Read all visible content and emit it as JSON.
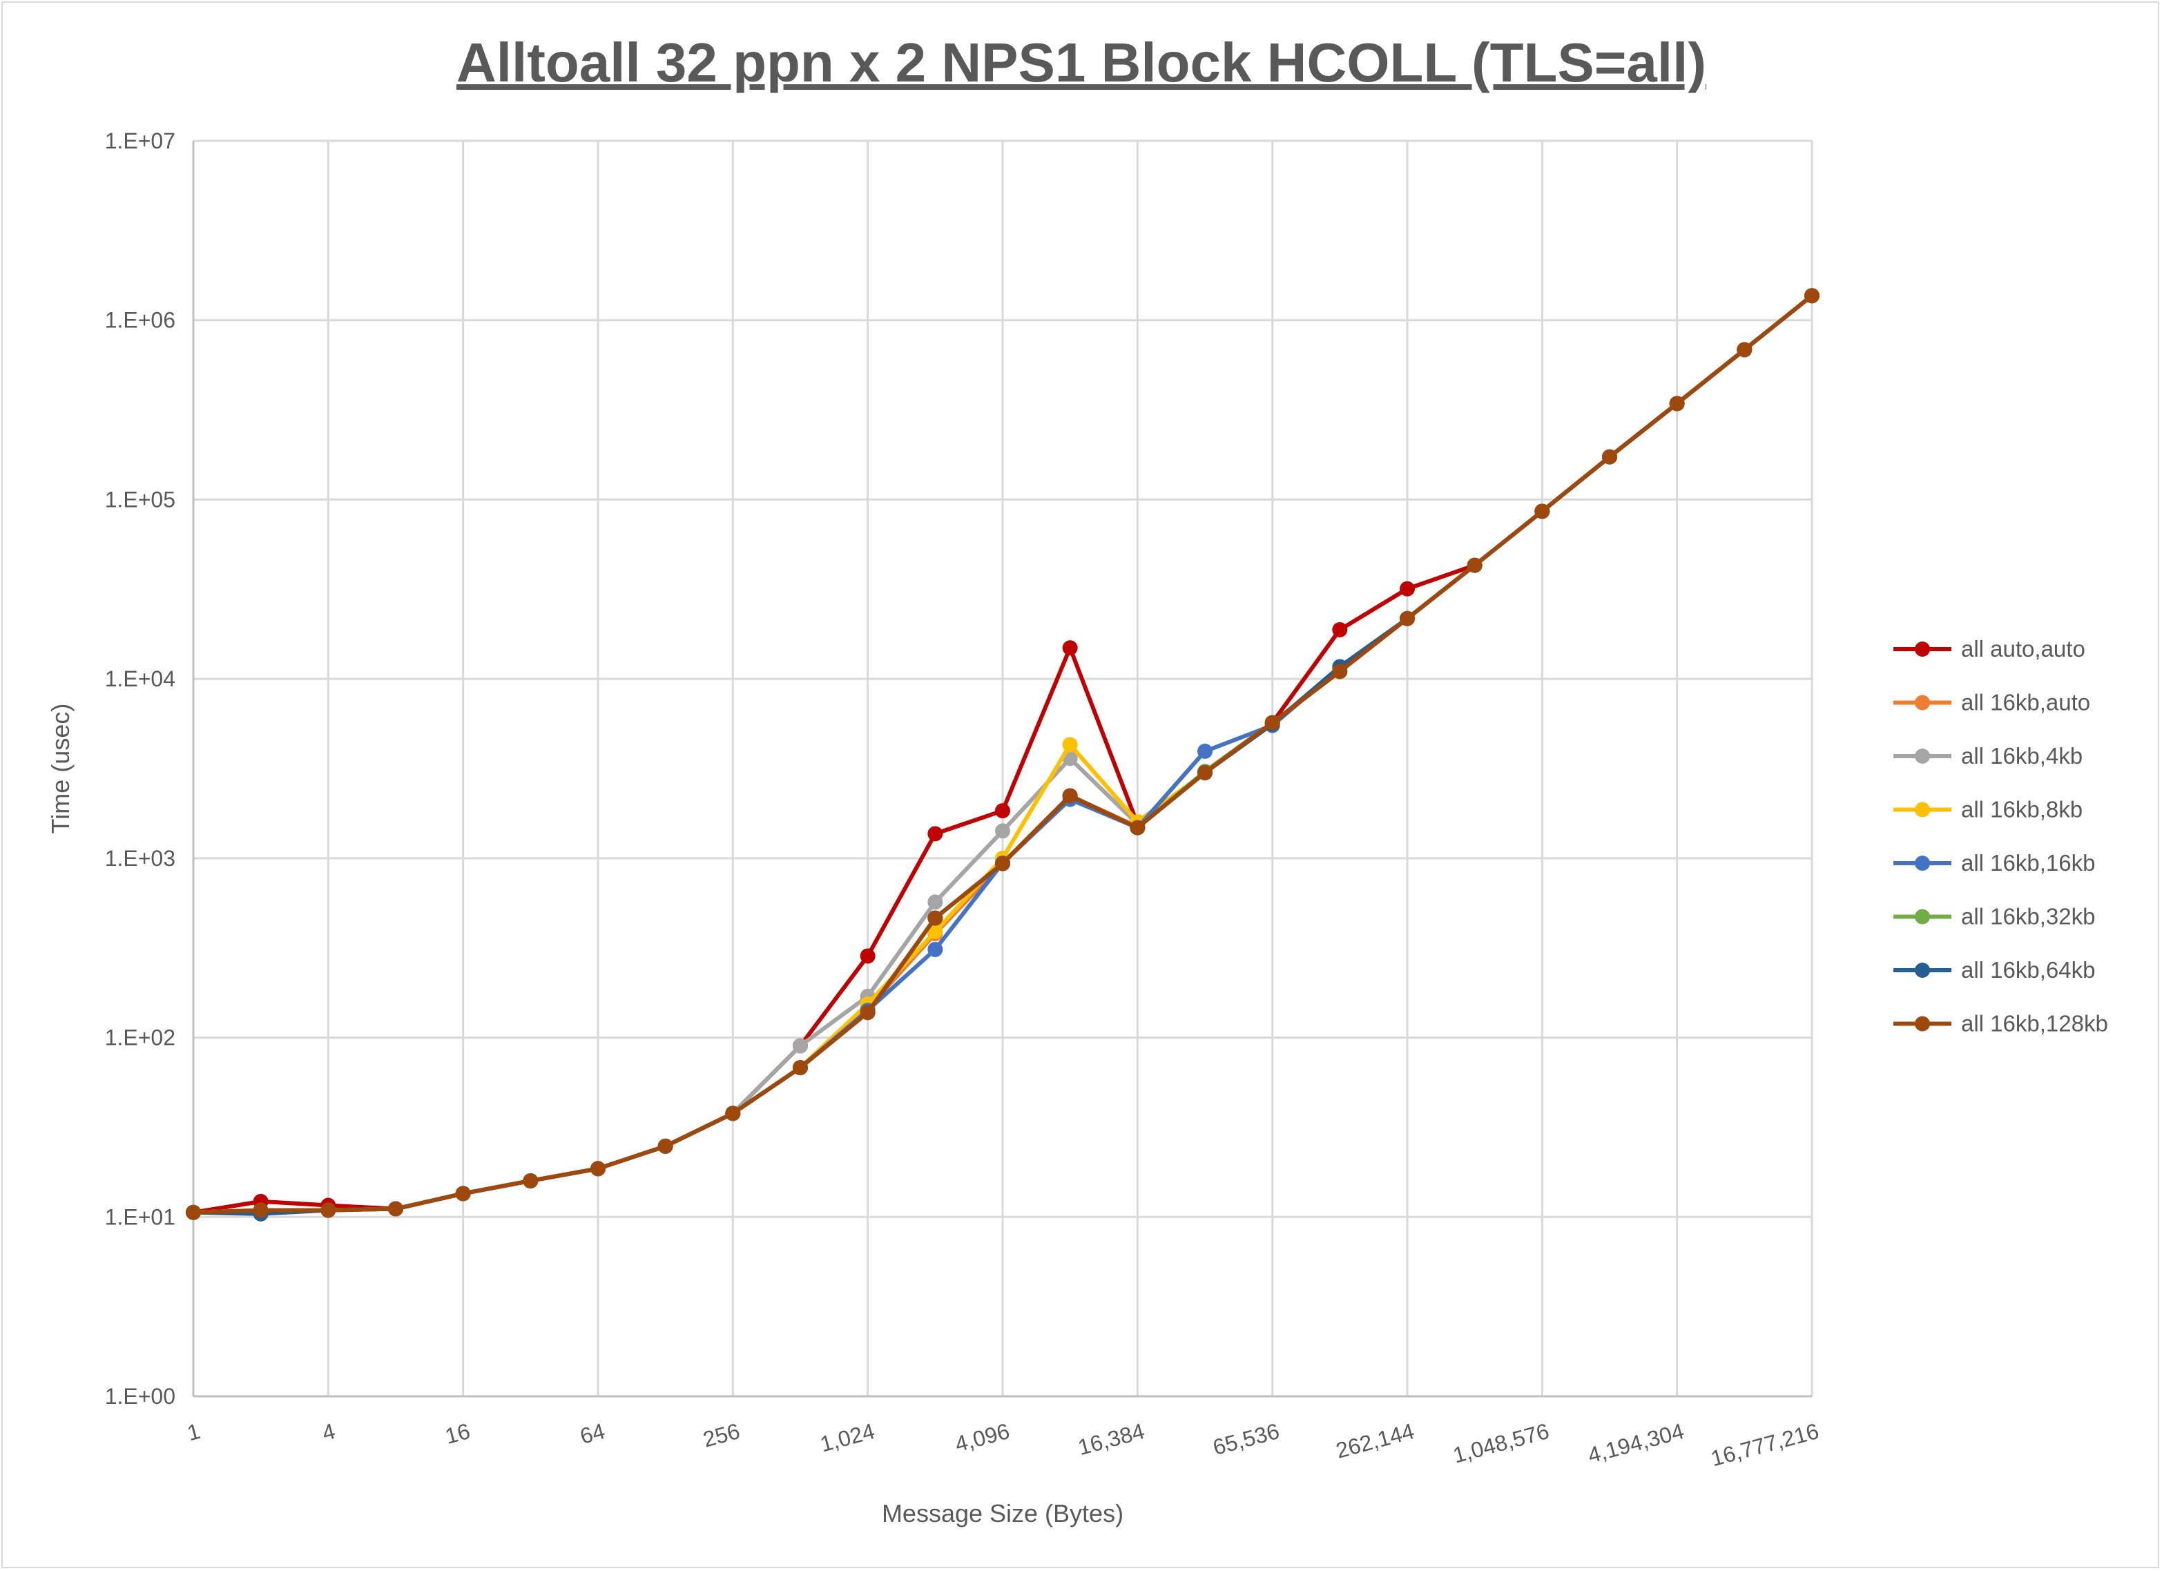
{
  "chart_data": {
    "type": "line",
    "title": "Alltoall 32 ppn x 2 NPS1 Block HCOLL (TLS=all)",
    "xlabel": "Message Size (Bytes)",
    "ylabel": "Time (usec)",
    "xscale": "log2",
    "yscale": "log10",
    "ylim": [
      1,
      10000000
    ],
    "grid": true,
    "legend_position": "right",
    "x": [
      1,
      2,
      4,
      8,
      16,
      32,
      64,
      128,
      256,
      512,
      1024,
      2048,
      4096,
      8192,
      16384,
      32768,
      65536,
      131072,
      262144,
      524288,
      1048576,
      2097152,
      4194304,
      8388608,
      16777216
    ],
    "x_tick_labels": [
      "1",
      "4",
      "16",
      "64",
      "256",
      "1,024",
      "4,096",
      "16,384",
      "65,536",
      "262,144",
      "1,048,576",
      "4,194,304",
      "16,777,216"
    ],
    "x_tick_values": [
      1,
      4,
      16,
      64,
      256,
      1024,
      4096,
      16384,
      65536,
      262144,
      1048576,
      4194304,
      16777216
    ],
    "y_tick_labels": [
      "1.E+00",
      "1.E+01",
      "1.E+02",
      "1.E+03",
      "1.E+04",
      "1.E+05",
      "1.E+06",
      "1.E+07"
    ],
    "series": [
      {
        "name": "all auto,auto",
        "color": "#C00000",
        "values": [
          10.6,
          12.2,
          11.6,
          11.1,
          13.5,
          15.9,
          18.6,
          24.8,
          37.8,
          90,
          285,
          1370,
          1840,
          14900,
          1550,
          3000,
          5700,
          18800,
          31800,
          43000,
          86000,
          173000,
          343000,
          685000,
          1370000
        ]
      },
      {
        "name": "all 16kb,auto",
        "color": "#ED7D31",
        "values": [
          10.6,
          10.9,
          10.9,
          11.1,
          13.5,
          15.9,
          18.6,
          24.8,
          37.8,
          68,
          145,
          380,
          940,
          2230,
          1500,
          3000,
          5700,
          11000,
          21700,
          43000,
          86000,
          173000,
          343000,
          685000,
          1370000
        ]
      },
      {
        "name": "all 16kb,4kb",
        "color": "#A5A5A5",
        "values": [
          10.6,
          10.9,
          10.9,
          11.1,
          13.5,
          15.9,
          18.6,
          24.8,
          37.8,
          90,
          170,
          570,
          1420,
          3600,
          1550,
          3000,
          5700,
          11000,
          21700,
          43000,
          86000,
          173000,
          343000,
          685000,
          1370000
        ]
      },
      {
        "name": "all 16kb,8kb",
        "color": "#FFC000",
        "values": [
          10.6,
          10.9,
          10.9,
          11.1,
          13.5,
          15.9,
          18.6,
          24.8,
          37.8,
          68,
          154,
          390,
          1000,
          4300,
          1600,
          3000,
          5700,
          11000,
          21700,
          43000,
          86000,
          173000,
          343000,
          685000,
          1370000
        ]
      },
      {
        "name": "all 16kb,16kb",
        "color": "#4472C4",
        "values": [
          10.6,
          10.5,
          10.9,
          11.1,
          13.5,
          15.9,
          18.6,
          24.8,
          37.8,
          68,
          142,
          310,
          940,
          2130,
          1480,
          3950,
          5500,
          11500,
          21700,
          43000,
          86000,
          173000,
          343000,
          685000,
          1370000
        ]
      },
      {
        "name": "all 16kb,32kb",
        "color": "#70AD47",
        "values": [
          10.6,
          10.9,
          10.9,
          11.1,
          13.5,
          15.9,
          18.6,
          24.8,
          37.8,
          68,
          138,
          464,
          934,
          2230,
          1480,
          3050,
          5700,
          11000,
          21700,
          43000,
          86000,
          173000,
          343000,
          685000,
          1370000
        ]
      },
      {
        "name": "all 16kb,64kb",
        "color": "#255E91",
        "values": [
          10.6,
          10.4,
          10.9,
          11.1,
          13.5,
          15.9,
          18.6,
          24.8,
          37.8,
          68,
          138,
          464,
          934,
          2230,
          1480,
          3000,
          5600,
          11700,
          21700,
          43000,
          86000,
          173000,
          343000,
          685000,
          1370000
        ]
      },
      {
        "name": "all 16kb,128kb",
        "color": "#9E480E",
        "values": [
          10.6,
          10.9,
          10.9,
          11.1,
          13.5,
          15.9,
          18.6,
          24.8,
          37.8,
          68,
          138,
          464,
          934,
          2230,
          1480,
          3000,
          5700,
          11000,
          21700,
          43000,
          86000,
          173000,
          343000,
          685000,
          1370000
        ]
      }
    ]
  }
}
